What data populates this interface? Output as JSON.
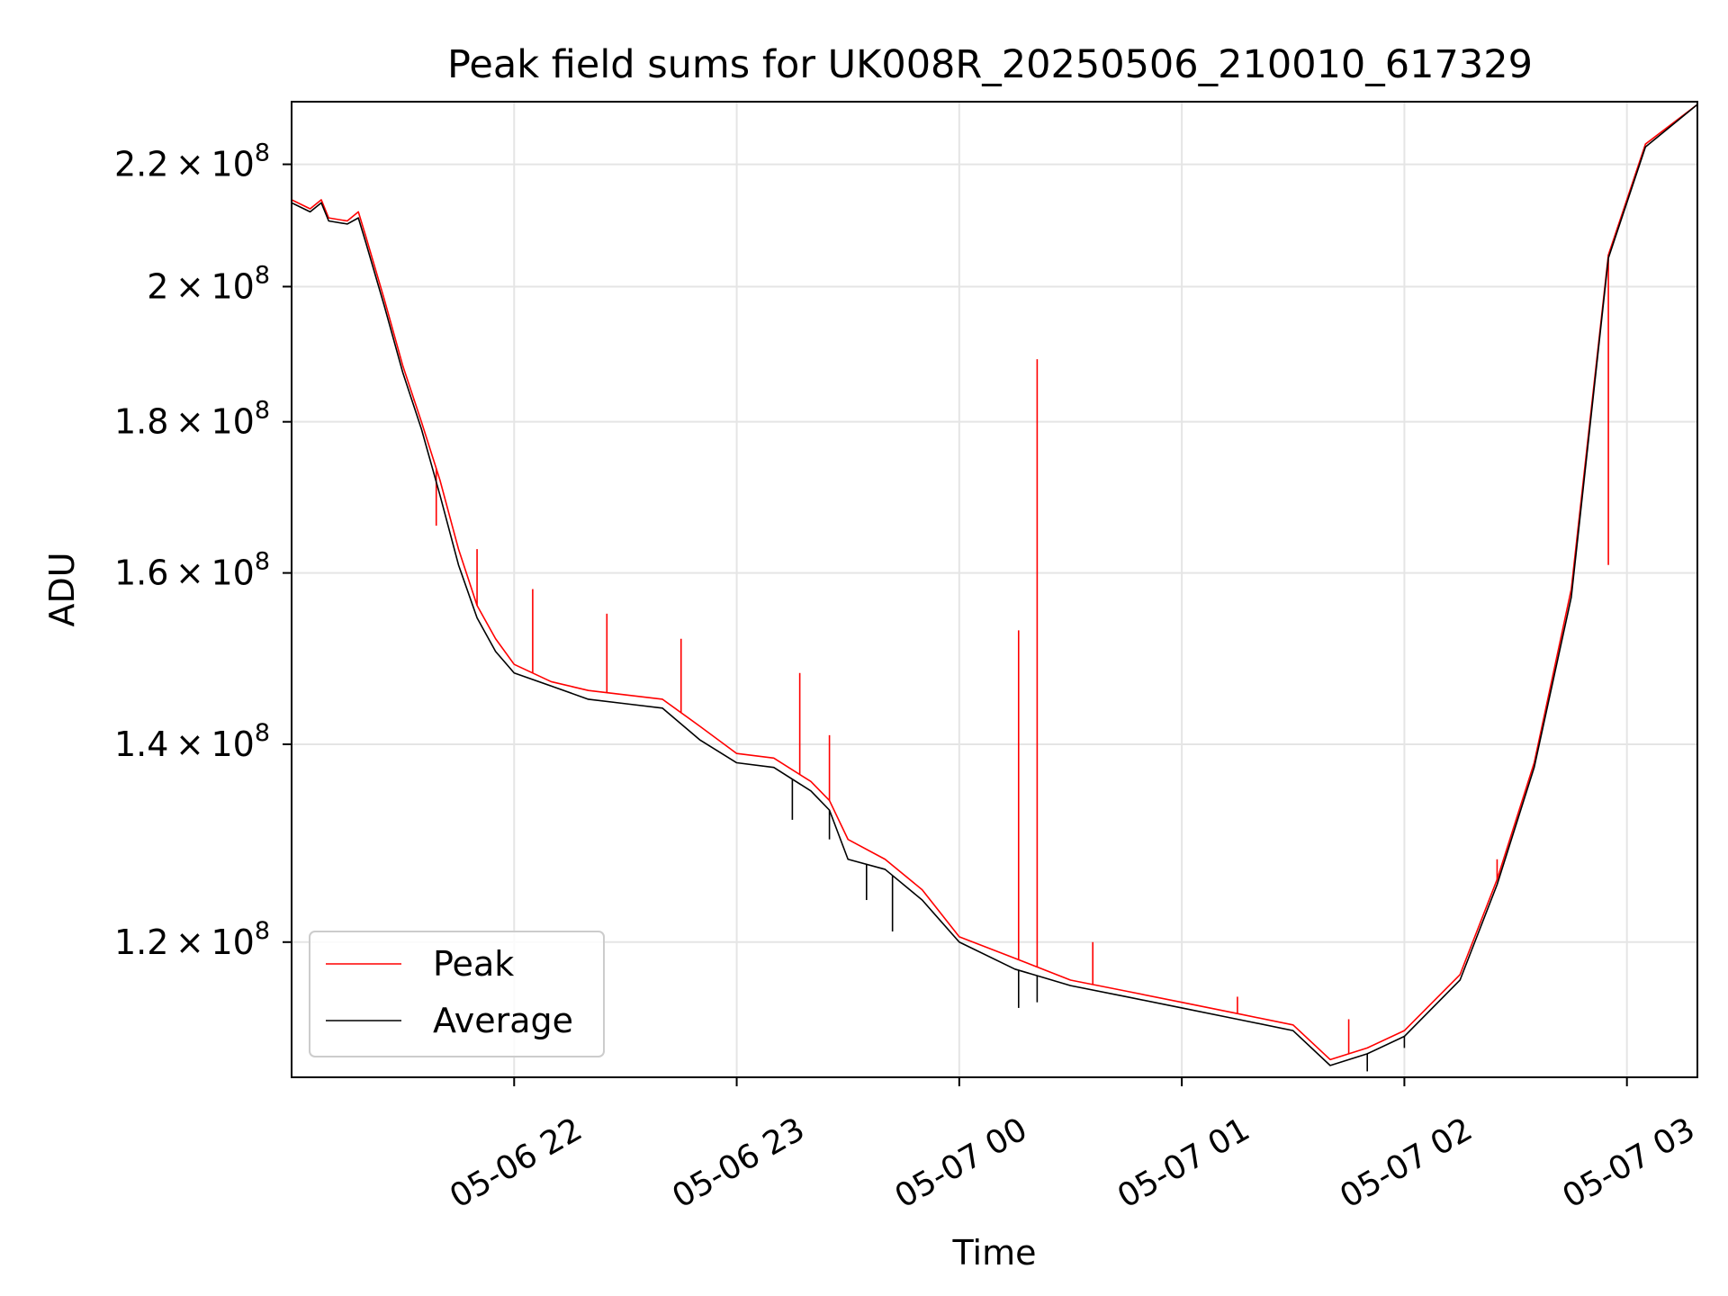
{
  "chart_data": {
    "type": "line",
    "title": "Peak field sums for UK008R_20250506_210010_617329",
    "xlabel": "Time",
    "ylabel": "ADU",
    "yscale": "log",
    "grid": true,
    "legend_position": "lower-left",
    "x_ticks": [
      "05-06 22",
      "05-06 23",
      "05-07 00",
      "05-07 01",
      "05-07 02",
      "05-07 03"
    ],
    "y_ticks": [
      {
        "value": 120000000,
        "mantissa": "1.2",
        "exponent": "8"
      },
      {
        "value": 140000000,
        "mantissa": "1.4",
        "exponent": "8"
      },
      {
        "value": 160000000,
        "mantissa": "1.6",
        "exponent": "8"
      },
      {
        "value": 180000000,
        "mantissa": "1.8",
        "exponent": "8"
      },
      {
        "value": 200000000,
        "mantissa": "2",
        "exponent": "8"
      },
      {
        "value": 220000000,
        "mantissa": "2.2",
        "exponent": "8"
      }
    ],
    "xlim": [
      "2025-05-06 21:00",
      "2025-05-07 03:19"
    ],
    "ylim": [
      108000000,
      231000000
    ],
    "series": [
      {
        "name": "Peak",
        "color": "#ff0000",
        "points": [
          [
            "2025-05-06 21:00",
            214000000
          ],
          [
            "2025-05-06 21:05",
            212500000
          ],
          [
            "2025-05-06 21:08",
            214000000
          ],
          [
            "2025-05-06 21:10",
            211000000
          ],
          [
            "2025-05-06 21:15",
            210500000
          ],
          [
            "2025-05-06 21:18",
            212000000
          ],
          [
            "2025-05-06 21:20",
            208000000
          ],
          [
            "2025-05-06 21:25",
            198000000
          ],
          [
            "2025-05-06 21:30",
            188000000
          ],
          [
            "2025-05-06 21:35",
            180000000
          ],
          [
            "2025-05-06 21:40",
            172000000
          ],
          [
            "2025-05-06 21:45",
            163000000
          ],
          [
            "2025-05-06 21:50",
            156000000
          ],
          [
            "2025-05-06 21:55",
            152000000
          ],
          [
            "2025-05-06 22:00",
            149000000
          ],
          [
            "2025-05-06 22:10",
            147000000
          ],
          [
            "2025-05-06 22:20",
            146000000
          ],
          [
            "2025-05-06 22:30",
            145500000
          ],
          [
            "2025-05-06 22:40",
            145000000
          ],
          [
            "2025-05-06 22:50",
            142000000
          ],
          [
            "2025-05-06 23:00",
            139000000
          ],
          [
            "2025-05-06 23:10",
            138500000
          ],
          [
            "2025-05-06 23:20",
            136000000
          ],
          [
            "2025-05-06 23:25",
            134000000
          ],
          [
            "2025-05-06 23:30",
            130000000
          ],
          [
            "2025-05-06 23:40",
            128000000
          ],
          [
            "2025-05-06 23:50",
            125000000
          ],
          [
            "2025-05-07 00:00",
            120500000
          ],
          [
            "2025-05-07 00:15",
            118500000
          ],
          [
            "2025-05-07 00:30",
            116500000
          ],
          [
            "2025-05-07 00:45",
            115500000
          ],
          [
            "2025-05-07 01:00",
            114500000
          ],
          [
            "2025-05-07 01:15",
            113500000
          ],
          [
            "2025-05-07 01:30",
            112500000
          ],
          [
            "2025-05-07 01:40",
            109500000
          ],
          [
            "2025-05-07 01:50",
            110500000
          ],
          [
            "2025-05-07 02:00",
            112000000
          ],
          [
            "2025-05-07 02:15",
            117000000
          ],
          [
            "2025-05-07 02:25",
            126000000
          ],
          [
            "2025-05-07 02:35",
            138000000
          ],
          [
            "2025-05-07 02:45",
            158000000
          ],
          [
            "2025-05-07 02:55",
            205000000
          ],
          [
            "2025-05-07 03:05",
            223500000
          ],
          [
            "2025-05-07 03:19",
            230500000
          ]
        ],
        "spikes": [
          [
            "2025-05-06 21:33",
            183000000
          ],
          [
            "2025-05-06 21:39",
            166000000
          ],
          [
            "2025-05-06 21:50",
            163000000
          ],
          [
            "2025-05-06 22:05",
            158000000
          ],
          [
            "2025-05-06 22:25",
            155000000
          ],
          [
            "2025-05-06 22:45",
            152000000
          ],
          [
            "2025-05-06 23:17",
            148000000
          ],
          [
            "2025-05-06 23:25",
            141000000
          ],
          [
            "2025-05-07 00:16",
            153000000
          ],
          [
            "2025-05-07 00:21",
            189000000
          ],
          [
            "2025-05-07 00:36",
            120000000
          ],
          [
            "2025-05-07 01:15",
            115000000
          ],
          [
            "2025-05-07 01:45",
            113000000
          ],
          [
            "2025-05-07 02:25",
            128000000
          ],
          [
            "2025-05-07 02:55",
            161000000
          ]
        ]
      },
      {
        "name": "Average",
        "color": "#000000",
        "points": [
          [
            "2025-05-06 21:00",
            213500000
          ],
          [
            "2025-05-06 21:05",
            212000000
          ],
          [
            "2025-05-06 21:08",
            213500000
          ],
          [
            "2025-05-06 21:10",
            210500000
          ],
          [
            "2025-05-06 21:15",
            210000000
          ],
          [
            "2025-05-06 21:18",
            211000000
          ],
          [
            "2025-05-06 21:20",
            207000000
          ],
          [
            "2025-05-06 21:25",
            197000000
          ],
          [
            "2025-05-06 21:30",
            187000000
          ],
          [
            "2025-05-06 21:35",
            179000000
          ],
          [
            "2025-05-06 21:40",
            170000000
          ],
          [
            "2025-05-06 21:45",
            161000000
          ],
          [
            "2025-05-06 21:50",
            154500000
          ],
          [
            "2025-05-06 21:55",
            150500000
          ],
          [
            "2025-05-06 22:00",
            148000000
          ],
          [
            "2025-05-06 22:10",
            146500000
          ],
          [
            "2025-05-06 22:20",
            145000000
          ],
          [
            "2025-05-06 22:30",
            144500000
          ],
          [
            "2025-05-06 22:40",
            144000000
          ],
          [
            "2025-05-06 22:50",
            140500000
          ],
          [
            "2025-05-06 23:00",
            138000000
          ],
          [
            "2025-05-06 23:10",
            137500000
          ],
          [
            "2025-05-06 23:20",
            135000000
          ],
          [
            "2025-05-06 23:25",
            133000000
          ],
          [
            "2025-05-06 23:30",
            128000000
          ],
          [
            "2025-05-06 23:40",
            127000000
          ],
          [
            "2025-05-06 23:50",
            124000000
          ],
          [
            "2025-05-07 00:00",
            120000000
          ],
          [
            "2025-05-07 00:15",
            117500000
          ],
          [
            "2025-05-07 00:30",
            116000000
          ],
          [
            "2025-05-07 00:45",
            115000000
          ],
          [
            "2025-05-07 01:00",
            114000000
          ],
          [
            "2025-05-07 01:15",
            113000000
          ],
          [
            "2025-05-07 01:30",
            112000000
          ],
          [
            "2025-05-07 01:40",
            109000000
          ],
          [
            "2025-05-07 01:50",
            110000000
          ],
          [
            "2025-05-07 02:00",
            111500000
          ],
          [
            "2025-05-07 02:15",
            116500000
          ],
          [
            "2025-05-07 02:25",
            125500000
          ],
          [
            "2025-05-07 02:35",
            137500000
          ],
          [
            "2025-05-07 02:45",
            157000000
          ],
          [
            "2025-05-07 02:55",
            204500000
          ],
          [
            "2025-05-07 03:05",
            223000000
          ],
          [
            "2025-05-07 03:19",
            230500000
          ]
        ],
        "spikes": [
          [
            "2025-05-06 23:15",
            132000000
          ],
          [
            "2025-05-06 23:25",
            130000000
          ],
          [
            "2025-05-06 23:35",
            124000000
          ],
          [
            "2025-05-06 23:42",
            121000000
          ],
          [
            "2025-05-07 00:16",
            114000000
          ],
          [
            "2025-05-07 00:21",
            114500000
          ],
          [
            "2025-05-07 01:50",
            108500000
          ],
          [
            "2025-05-07 02:00",
            110500000
          ]
        ]
      }
    ]
  }
}
